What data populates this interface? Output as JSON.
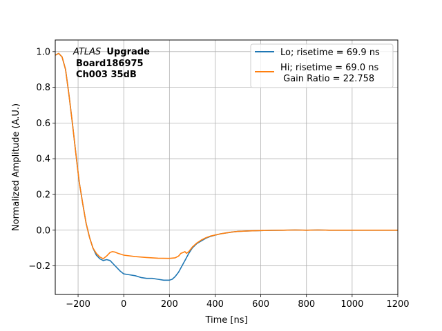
{
  "chart_data": {
    "type": "line",
    "xlabel": "Time [ns]",
    "ylabel": "Normalized Amplitude (A.U.)",
    "xlim": [
      -300,
      1200
    ],
    "ylim": [
      -0.36,
      1.065
    ],
    "xticks": [
      -200,
      0,
      200,
      400,
      600,
      800,
      1000,
      1200
    ],
    "xtick_labels": [
      "−200",
      "0",
      "200",
      "400",
      "600",
      "800",
      "1000",
      "1200"
    ],
    "yticks": [
      -0.2,
      0.0,
      0.2,
      0.4,
      0.6,
      0.8,
      1.0
    ],
    "ytick_labels": [
      "−0.2",
      "0.0",
      "0.2",
      "0.4",
      "0.6",
      "0.8",
      "1.0"
    ],
    "grid": true,
    "legend_position": "top-right",
    "annotation": {
      "italic_part": "ATLAS",
      "bold_part": "Upgrade",
      "line2": "Board186975",
      "line3": "Ch003 35dB"
    },
    "series": [
      {
        "name": "Lo; risetime = 69.9 ns",
        "color": "#1f77b4",
        "x": [
          -300,
          -285,
          -270,
          -255,
          -240,
          -225,
          -210,
          -195,
          -180,
          -165,
          -150,
          -135,
          -120,
          -105,
          -90,
          -75,
          -60,
          -45,
          -30,
          -15,
          0,
          25,
          50,
          75,
          100,
          125,
          150,
          175,
          200,
          212,
          225,
          240,
          255,
          270,
          285,
          300,
          320,
          340,
          360,
          380,
          400,
          425,
          450,
          475,
          500,
          550,
          600,
          650,
          700,
          750,
          800,
          850,
          900,
          950,
          1000,
          1050,
          1100,
          1150,
          1200
        ],
        "y": [
          0.98,
          0.99,
          0.97,
          0.9,
          0.76,
          0.6,
          0.43,
          0.27,
          0.15,
          0.04,
          -0.04,
          -0.1,
          -0.14,
          -0.16,
          -0.17,
          -0.165,
          -0.17,
          -0.19,
          -0.21,
          -0.23,
          -0.245,
          -0.25,
          -0.255,
          -0.265,
          -0.27,
          -0.27,
          -0.275,
          -0.28,
          -0.28,
          -0.275,
          -0.26,
          -0.235,
          -0.2,
          -0.165,
          -0.13,
          -0.1,
          -0.075,
          -0.06,
          -0.045,
          -0.035,
          -0.028,
          -0.02,
          -0.015,
          -0.01,
          -0.007,
          -0.004,
          -0.002,
          -0.001,
          0.0,
          0.001,
          0.0,
          0.001,
          0.0,
          0.0,
          0.0,
          0.0,
          0.0,
          0.0,
          0.0
        ]
      },
      {
        "name": "Hi; risetime = 69.0 ns",
        "name_line2": " Gain Ratio = 22.758",
        "color": "#ff7f0e",
        "x": [
          -300,
          -285,
          -270,
          -255,
          -240,
          -225,
          -210,
          -195,
          -180,
          -165,
          -150,
          -135,
          -120,
          -105,
          -90,
          -75,
          -60,
          -50,
          -40,
          -25,
          0,
          50,
          100,
          150,
          200,
          225,
          240,
          250,
          260,
          268,
          275,
          285,
          300,
          320,
          340,
          360,
          380,
          400,
          425,
          450,
          475,
          500,
          550,
          600,
          650,
          700,
          750,
          800,
          850,
          900,
          950,
          1000,
          1050,
          1100,
          1150,
          1200
        ],
        "y": [
          0.98,
          0.99,
          0.97,
          0.9,
          0.76,
          0.6,
          0.43,
          0.27,
          0.15,
          0.04,
          -0.04,
          -0.1,
          -0.13,
          -0.15,
          -0.16,
          -0.145,
          -0.125,
          -0.12,
          -0.122,
          -0.13,
          -0.14,
          -0.148,
          -0.153,
          -0.157,
          -0.158,
          -0.155,
          -0.145,
          -0.13,
          -0.125,
          -0.12,
          -0.13,
          -0.12,
          -0.095,
          -0.072,
          -0.055,
          -0.042,
          -0.033,
          -0.027,
          -0.02,
          -0.015,
          -0.01,
          -0.007,
          -0.004,
          -0.002,
          -0.001,
          0.0,
          0.001,
          0.0,
          0.001,
          0.0,
          0.0,
          0.0,
          0.0,
          0.0,
          0.0,
          0.0
        ]
      }
    ]
  }
}
